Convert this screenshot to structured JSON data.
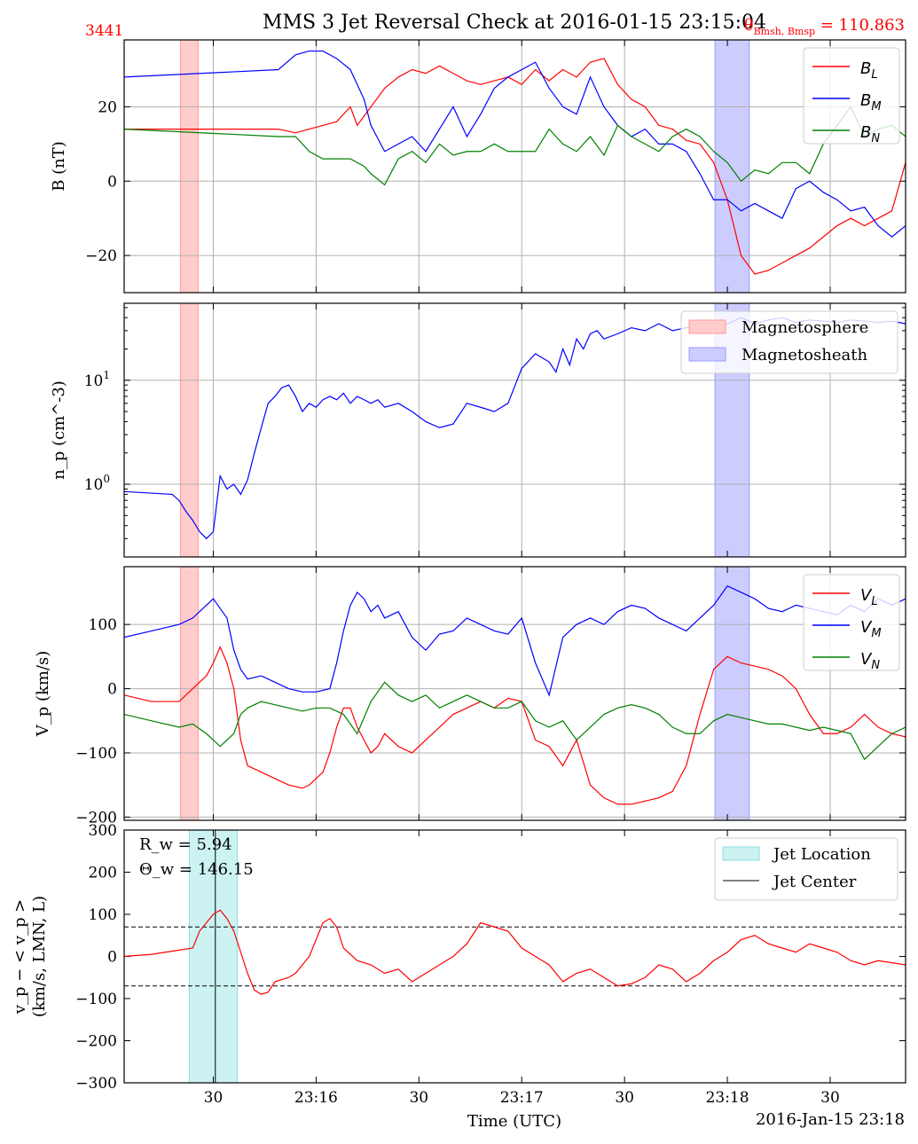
{
  "figure": {
    "title": "MMS 3 Jet Reversal Check at 2016-01-15 23:15:04",
    "corner_left": "3441",
    "corner_right": "θ",
    "corner_right_sub": "Bmsh, Bmsp",
    "corner_right_value": " = 110.863",
    "xlabel": "Time (UTC)",
    "date_label": "2016-Jan-15 23:18",
    "red": "#ff0000",
    "blue": "#0000ff",
    "green": "#008000"
  },
  "chart_data": [
    {
      "type": "line",
      "panel": "B",
      "ylabel": "B (nT)",
      "ylim": [
        -30,
        38
      ],
      "yticks": [
        "−20",
        "0",
        "20"
      ],
      "grid": true,
      "legend_position": "top-right",
      "xtick_labels": [
        "30",
        "23:16",
        "30",
        "23:17",
        "30",
        "23:18",
        "30"
      ],
      "shaded": [
        {
          "name": "Magnetosphere",
          "t0": 23.36,
          "t1": 23.85,
          "color": "#ffcccc"
        },
        {
          "name": "Magnetosheath",
          "t0": 2.65,
          "t1": 3.15,
          "color": "#ccccff"
        }
      ],
      "series": [
        {
          "name": "B_L",
          "color": "#ff0000",
          "x": [
            0,
            22.5,
            25,
            27,
            29,
            31,
            33,
            34,
            36,
            38,
            40,
            42,
            44,
            46,
            48,
            50,
            52,
            54,
            56,
            58,
            60,
            62,
            64,
            66,
            68,
            70,
            72,
            74,
            76,
            78,
            80,
            82,
            84,
            86,
            88,
            90,
            92,
            94,
            96,
            98,
            100,
            102,
            104,
            106,
            108,
            110,
            112,
            114
          ],
          "y": [
            14,
            14,
            13,
            14,
            15,
            16,
            20,
            15,
            20,
            25,
            28,
            30,
            29,
            31,
            29,
            27,
            26,
            27,
            28,
            26,
            30,
            27,
            30,
            28,
            32,
            33,
            26,
            22,
            20,
            15,
            14,
            11,
            10,
            5,
            -5,
            -20,
            -25,
            -24,
            -22,
            -20,
            -18,
            -15,
            -12,
            -10,
            -12,
            -10,
            -8,
            5
          ]
        },
        {
          "name": "B_M",
          "color": "#0000ff",
          "x": [
            0,
            22.5,
            25,
            27,
            29,
            31,
            33,
            35,
            36,
            38,
            40,
            42,
            44,
            46,
            48,
            50,
            52,
            54,
            56,
            58,
            60,
            62,
            64,
            66,
            68,
            70,
            72,
            74,
            76,
            78,
            80,
            82,
            84,
            86,
            88,
            90,
            92,
            94,
            96,
            98,
            100,
            102,
            104,
            106,
            108,
            110,
            112,
            114
          ],
          "y": [
            28,
            30,
            34,
            35,
            35,
            33,
            30,
            22,
            15,
            8,
            10,
            12,
            8,
            14,
            20,
            12,
            18,
            25,
            28,
            30,
            32,
            25,
            20,
            18,
            28,
            20,
            15,
            12,
            14,
            10,
            10,
            8,
            2,
            -5,
            -5,
            -8,
            -6,
            -8,
            -10,
            -2,
            0,
            -3,
            -5,
            -8,
            -7,
            -12,
            -15,
            -12
          ]
        },
        {
          "name": "B_N",
          "color": "#008000",
          "x": [
            0,
            22.5,
            25,
            27,
            29,
            31,
            33,
            35,
            36,
            38,
            40,
            42,
            44,
            46,
            48,
            50,
            52,
            54,
            56,
            58,
            60,
            62,
            64,
            66,
            68,
            70,
            72,
            74,
            76,
            78,
            80,
            82,
            84,
            86,
            88,
            90,
            92,
            94,
            96,
            98,
            100,
            102,
            104,
            106,
            108,
            110,
            112,
            114
          ],
          "y": [
            14,
            12,
            12,
            8,
            6,
            6,
            6,
            4,
            2,
            -1,
            6,
            8,
            5,
            10,
            7,
            8,
            8,
            10,
            8,
            8,
            8,
            14,
            10,
            8,
            12,
            7,
            15,
            12,
            10,
            8,
            12,
            14,
            12,
            8,
            5,
            0,
            3,
            2,
            5,
            5,
            2,
            10,
            15,
            20,
            12,
            14,
            15,
            12
          ]
        }
      ]
    },
    {
      "type": "line",
      "panel": "np",
      "ylabel": "n_p (cm^-3)",
      "yscale": "log",
      "ylim": [
        0.2,
        55
      ],
      "yticks": [
        "10",
        "10"
      ],
      "ytick_exponents": [
        "0",
        "1"
      ],
      "grid": true,
      "legend_position": "top-right",
      "legend": [
        "Magnetosphere",
        "Magnetosheath"
      ],
      "series": [
        {
          "name": "n_p",
          "color": "#0000ff",
          "x": [
            0,
            7,
            8,
            9,
            10,
            11,
            12,
            13,
            14,
            15,
            16,
            17,
            18,
            19,
            20,
            21,
            22,
            23,
            24,
            25,
            26,
            27,
            28,
            29,
            30,
            31,
            32,
            33,
            34,
            35,
            36,
            37,
            38,
            40,
            42,
            44,
            46,
            48,
            50,
            52,
            54,
            56,
            58,
            60,
            62,
            63,
            64,
            65,
            66,
            67,
            68,
            69,
            70,
            72,
            74,
            76,
            78,
            80,
            82,
            84,
            86,
            88,
            90,
            92,
            94,
            96,
            98,
            100,
            102,
            104,
            106,
            108,
            110,
            112,
            114
          ],
          "y": [
            0.85,
            0.8,
            0.7,
            0.55,
            0.45,
            0.35,
            0.3,
            0.35,
            1.2,
            0.9,
            1.0,
            0.8,
            1.1,
            2.0,
            3.5,
            6.0,
            7.0,
            8.5,
            9.0,
            7.0,
            5.0,
            6.0,
            5.5,
            6.5,
            7.0,
            6.5,
            7.5,
            6.0,
            7.0,
            6.5,
            6.0,
            6.5,
            5.5,
            6.0,
            5.0,
            4.0,
            3.5,
            3.8,
            6.0,
            5.5,
            5.0,
            6.0,
            13,
            18,
            15,
            12,
            20,
            14,
            25,
            20,
            28,
            30,
            25,
            28,
            32,
            30,
            35,
            30,
            32,
            34,
            33,
            35,
            40,
            35,
            38,
            40,
            36,
            38,
            37,
            36,
            38,
            37,
            36,
            37,
            35
          ]
        }
      ]
    },
    {
      "type": "line",
      "panel": "Vp",
      "ylabel": "V_p (km/s)",
      "ylim": [
        -205,
        190
      ],
      "yticks": [
        "−200",
        "−100",
        "0",
        "100"
      ],
      "grid": true,
      "legend_position": "top-right",
      "series": [
        {
          "name": "V_L",
          "color": "#ff0000",
          "x": [
            0,
            4,
            8,
            10,
            12,
            13,
            14,
            15,
            16,
            17,
            18,
            20,
            22,
            24,
            26,
            27,
            28,
            29,
            30,
            31,
            32,
            33,
            34,
            35,
            36,
            37,
            38,
            40,
            42,
            44,
            46,
            48,
            50,
            52,
            54,
            56,
            58,
            60,
            62,
            64,
            66,
            68,
            70,
            72,
            74,
            76,
            78,
            80,
            82,
            84,
            86,
            88,
            90,
            92,
            94,
            96,
            98,
            100,
            102,
            104,
            106,
            108,
            110,
            112,
            114
          ],
          "y": [
            -10,
            -20,
            -20,
            0,
            20,
            40,
            65,
            40,
            0,
            -80,
            -120,
            -130,
            -140,
            -150,
            -155,
            -150,
            -140,
            -130,
            -100,
            -60,
            -30,
            -30,
            -60,
            -80,
            -100,
            -90,
            -70,
            -90,
            -100,
            -80,
            -60,
            -40,
            -30,
            -20,
            -30,
            -15,
            -20,
            -80,
            -90,
            -120,
            -80,
            -150,
            -170,
            -180,
            -180,
            -175,
            -170,
            -160,
            -120,
            -40,
            30,
            50,
            40,
            35,
            30,
            20,
            0,
            -40,
            -70,
            -70,
            -60,
            -40,
            -60,
            -70,
            -75
          ]
        },
        {
          "name": "V_M",
          "color": "#0000ff",
          "x": [
            0,
            4,
            8,
            10,
            12,
            13,
            14,
            15,
            16,
            17,
            18,
            20,
            22,
            24,
            26,
            28,
            30,
            31,
            32,
            33,
            34,
            35,
            36,
            37,
            38,
            40,
            42,
            44,
            46,
            48,
            50,
            52,
            54,
            56,
            58,
            60,
            62,
            64,
            66,
            68,
            70,
            72,
            74,
            76,
            78,
            80,
            82,
            84,
            86,
            88,
            90,
            92,
            94,
            96,
            98,
            100,
            102,
            104,
            106,
            108,
            110,
            112,
            114
          ],
          "y": [
            80,
            90,
            100,
            110,
            130,
            140,
            125,
            110,
            60,
            30,
            15,
            20,
            10,
            0,
            -5,
            -5,
            0,
            40,
            90,
            130,
            150,
            140,
            120,
            130,
            110,
            120,
            80,
            60,
            85,
            90,
            110,
            100,
            90,
            85,
            110,
            40,
            -10,
            80,
            100,
            110,
            100,
            120,
            130,
            125,
            110,
            100,
            90,
            110,
            130,
            160,
            150,
            140,
            125,
            120,
            130,
            125,
            120,
            115,
            130,
            120,
            140,
            130,
            140
          ]
        },
        {
          "name": "V_N",
          "color": "#008000",
          "x": [
            0,
            4,
            8,
            10,
            12,
            13,
            14,
            15,
            16,
            17,
            18,
            20,
            22,
            24,
            26,
            28,
            30,
            32,
            34,
            36,
            38,
            40,
            42,
            44,
            46,
            48,
            50,
            52,
            54,
            56,
            58,
            60,
            62,
            64,
            66,
            68,
            70,
            72,
            74,
            76,
            78,
            80,
            82,
            84,
            86,
            88,
            90,
            92,
            94,
            96,
            98,
            100,
            102,
            104,
            106,
            108,
            110,
            112,
            114
          ],
          "y": [
            -40,
            -50,
            -60,
            -55,
            -70,
            -80,
            -90,
            -80,
            -70,
            -40,
            -30,
            -20,
            -25,
            -30,
            -35,
            -30,
            -30,
            -40,
            -70,
            -20,
            10,
            -10,
            -20,
            -10,
            -30,
            -20,
            -10,
            -20,
            -30,
            -30,
            -20,
            -50,
            -60,
            -50,
            -80,
            -60,
            -40,
            -30,
            -25,
            -30,
            -40,
            -60,
            -70,
            -70,
            -50,
            -40,
            -45,
            -50,
            -55,
            -55,
            -60,
            -65,
            -60,
            -65,
            -70,
            -110,
            -90,
            -70,
            -60
          ]
        }
      ]
    },
    {
      "type": "line",
      "panel": "dv",
      "ylabel_line1": "v_p − < v_p >",
      "ylabel_line2": "(km/s, LMN, L)",
      "ylim": [
        -300,
        300
      ],
      "yticks": [
        "−300",
        "−200",
        "−100",
        "0",
        "100",
        "200",
        "300"
      ],
      "grid": false,
      "legend_position": "top-right",
      "legend": [
        "Jet Location",
        "Jet Center"
      ],
      "annotation_rw": "R_w = 5.94",
      "annotation_theta": "Θ_w = 146.15",
      "jet_location": [
        24.7,
        31.6
      ],
      "jet_center": 26.7,
      "threshold": 70,
      "series": [
        {
          "name": "v_p - <v_p>",
          "color": "#ff0000",
          "x": [
            0,
            4,
            6,
            8,
            10,
            11,
            12,
            13,
            14,
            15,
            16,
            17,
            18,
            19,
            20,
            21,
            22,
            24,
            25,
            26,
            27,
            28,
            29,
            30,
            31,
            32,
            34,
            36,
            38,
            40,
            42,
            44,
            46,
            48,
            50,
            52,
            54,
            56,
            58,
            60,
            62,
            64,
            66,
            68,
            70,
            72,
            74,
            76,
            78,
            80,
            82,
            84,
            86,
            88,
            90,
            92,
            94,
            96,
            98,
            100,
            102,
            104,
            106,
            108,
            110,
            112,
            114
          ],
          "y": [
            0,
            5,
            10,
            15,
            20,
            60,
            80,
            100,
            110,
            90,
            60,
            10,
            -40,
            -80,
            -90,
            -85,
            -60,
            -50,
            -40,
            -20,
            0,
            40,
            80,
            90,
            70,
            20,
            -10,
            -20,
            -40,
            -30,
            -60,
            -40,
            -20,
            0,
            30,
            80,
            70,
            60,
            20,
            0,
            -20,
            -60,
            -40,
            -30,
            -50,
            -70,
            -65,
            -50,
            -20,
            -30,
            -60,
            -40,
            -10,
            10,
            40,
            50,
            30,
            20,
            10,
            30,
            20,
            10,
            -10,
            -20,
            -10,
            -15,
            -20
          ]
        }
      ]
    }
  ]
}
